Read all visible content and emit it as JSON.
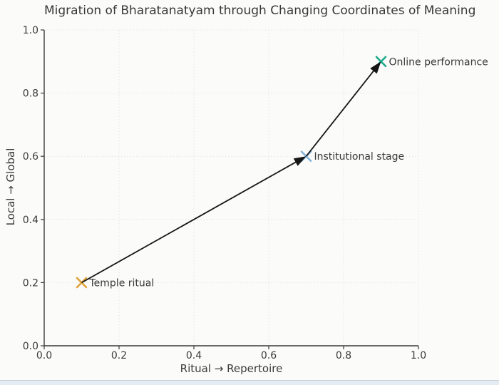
{
  "chart_data": {
    "type": "scatter",
    "title": "Migration of Bharatanatyam through Changing Coordinates of Meaning",
    "xlabel": "Ritual → Repertoire",
    "ylabel": "Local → Global",
    "xlim": [
      0.0,
      1.0
    ],
    "ylim": [
      0.0,
      1.0
    ],
    "xticks": [
      0.0,
      0.2,
      0.4,
      0.6,
      0.8,
      1.0
    ],
    "yticks": [
      0.0,
      0.2,
      0.4,
      0.6,
      0.8,
      1.0
    ],
    "xtick_labels": [
      "0.0",
      "0.2",
      "0.4",
      "0.6",
      "0.8",
      "1.0"
    ],
    "ytick_labels": [
      "0.0",
      "0.2",
      "0.4",
      "0.6",
      "0.8",
      "1.0"
    ],
    "grid": true,
    "legend": "none",
    "points": [
      {
        "label": "Temple ritual",
        "x": 0.1,
        "y": 0.2,
        "marker": "x",
        "color": "#e1a33c"
      },
      {
        "label": "Institutional stage",
        "x": 0.7,
        "y": 0.6,
        "marker": "x",
        "color": "#85b6da"
      },
      {
        "label": "Online performance",
        "x": 0.9,
        "y": 0.9,
        "marker": "x",
        "color": "#21ab8d"
      }
    ],
    "arrows": [
      {
        "from": 0,
        "to": 1
      },
      {
        "from": 1,
        "to": 2
      }
    ],
    "arrow_color": "#161616",
    "text_color": "#3a3a3a"
  }
}
